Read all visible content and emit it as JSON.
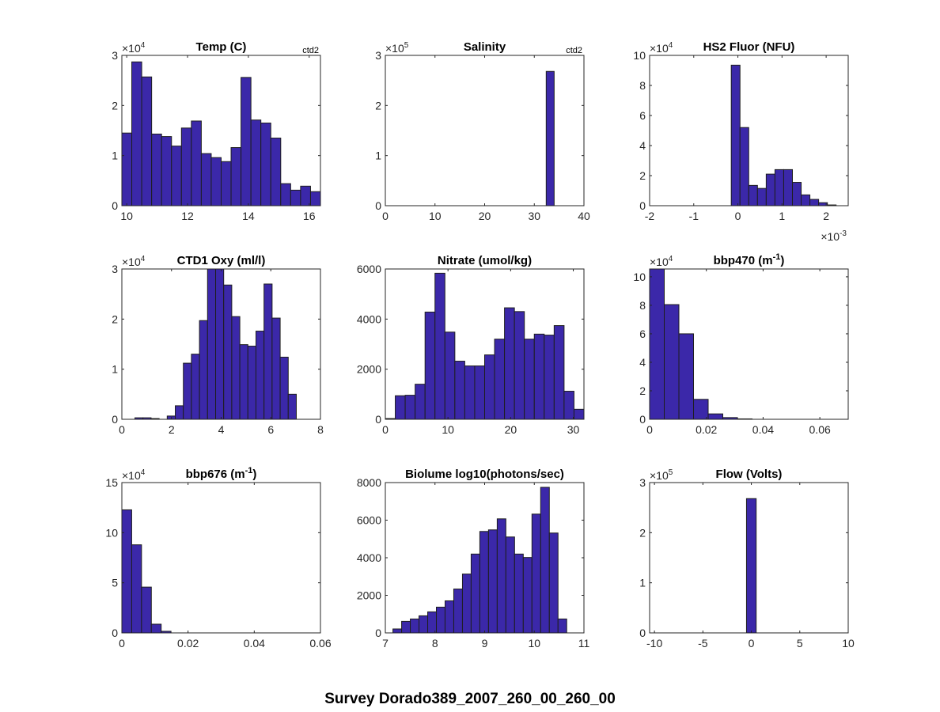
{
  "figure": {
    "suptitle": "Survey Dorado389_2007_260_00_260_00"
  },
  "colors": {
    "bar_fill": "#3b28a9",
    "bar_edge": "#1e1e1e",
    "axis": "#262626"
  },
  "chart_data": [
    {
      "type": "bar",
      "title": "Temp (C)",
      "title_sup": "",
      "title_end": "",
      "corner_label": "ctd2",
      "xlim": [
        9.84,
        16.37
      ],
      "xticks": [
        10,
        12,
        14,
        16
      ],
      "ylim": [
        0,
        3
      ],
      "yticks": [
        0,
        1,
        2,
        3
      ],
      "y_exponent": "4",
      "x_exponent": "",
      "bin_start": 9.84,
      "bin_width": 0.3265,
      "counts": [
        1.45,
        2.87,
        2.57,
        1.43,
        1.38,
        1.19,
        1.55,
        1.69,
        1.04,
        0.96,
        0.88,
        1.16,
        2.56,
        1.71,
        1.65,
        1.35,
        0.44,
        0.31,
        0.39,
        0.28
      ]
    },
    {
      "type": "bar",
      "title": "Salinity",
      "title_sup": "",
      "title_end": "",
      "corner_label": "ctd2",
      "xlim": [
        0,
        40
      ],
      "xticks": [
        0,
        10,
        20,
        30,
        40
      ],
      "ylim": [
        0,
        3
      ],
      "yticks": [
        0,
        1,
        2,
        3
      ],
      "y_exponent": "5",
      "x_exponent": "",
      "bin_start": 32.4,
      "bin_width": 1.6,
      "counts": [
        2.68
      ]
    },
    {
      "type": "bar",
      "title": "HS2 Fluor (NFU)",
      "title_sup": "",
      "title_end": "",
      "corner_label": "",
      "xlim": [
        -2,
        2.5
      ],
      "xticks": [
        -2,
        -1,
        0,
        1,
        2
      ],
      "ylim": [
        0,
        10
      ],
      "yticks": [
        0,
        2,
        4,
        6,
        8,
        10
      ],
      "y_exponent": "4",
      "x_exponent": "-3",
      "bin_start": -0.15,
      "bin_width": 0.198,
      "counts": [
        9.35,
        5.2,
        1.35,
        1.15,
        2.1,
        2.4,
        2.4,
        1.55,
        0.72,
        0.42,
        0.2,
        0.05
      ]
    },
    {
      "type": "bar",
      "title": "CTD1 Oxy (ml/l)",
      "title_sup": "",
      "title_end": "",
      "corner_label": "",
      "xlim": [
        0,
        8
      ],
      "xticks": [
        0,
        2,
        4,
        6,
        8
      ],
      "ylim": [
        0,
        3
      ],
      "yticks": [
        0,
        1,
        2,
        3
      ],
      "y_exponent": "4",
      "x_exponent": "",
      "bin_start": 0.527,
      "bin_width": 0.325,
      "counts": [
        0.03,
        0.03,
        0.015,
        0,
        0.065,
        0.27,
        1.12,
        1.3,
        1.97,
        3.05,
        3.02,
        2.68,
        2.05,
        1.49,
        1.46,
        1.76,
        2.7,
        2.02,
        1.24,
        0.5
      ]
    },
    {
      "type": "bar",
      "title": "Nitrate (umol/kg)",
      "title_sup": "",
      "title_end": "",
      "corner_label": "",
      "xlim": [
        0,
        31.7
      ],
      "xticks": [
        0,
        10,
        20,
        30
      ],
      "ylim": [
        0,
        6000
      ],
      "yticks": [
        0,
        2000,
        4000,
        6000
      ],
      "y_exponent": "",
      "x_exponent": "",
      "bin_start": 0,
      "bin_width": 1.585,
      "counts": [
        30,
        940,
        960,
        1400,
        4280,
        5830,
        3480,
        2320,
        2130,
        2130,
        2570,
        3200,
        4450,
        4300,
        3200,
        3400,
        3360,
        3740,
        1120,
        400
      ]
    },
    {
      "type": "bar",
      "title": "bbp470 (m",
      "title_sup": "-1",
      "title_end": ")",
      "corner_label": "",
      "xlim": [
        0,
        0.07
      ],
      "xticks": [
        0,
        0.02,
        0.04,
        0.06
      ],
      "ylim": [
        0,
        10.55
      ],
      "yticks": [
        0,
        2,
        4,
        6,
        8,
        10
      ],
      "y_exponent": "4",
      "x_exponent": "",
      "bin_start": 0,
      "bin_width": 0.00516,
      "counts": [
        10.6,
        8.05,
        6.0,
        1.4,
        0.38,
        0.12,
        0.03
      ]
    },
    {
      "type": "bar",
      "title": "bbp676 (m",
      "title_sup": "-1",
      "title_end": ")",
      "corner_label": "",
      "xlim": [
        0,
        0.06
      ],
      "xticks": [
        0,
        0.02,
        0.04,
        0.06
      ],
      "ylim": [
        0,
        15
      ],
      "yticks": [
        0,
        5,
        10,
        15
      ],
      "y_exponent": "4",
      "x_exponent": "",
      "bin_start": 0,
      "bin_width": 0.00297,
      "counts": [
        12.28,
        8.79,
        4.57,
        0.87,
        0.16
      ]
    },
    {
      "type": "bar",
      "title": "Biolume log10(photons/sec)",
      "title_sup": "",
      "title_end": "",
      "corner_label": "",
      "xlim": [
        7,
        11
      ],
      "xticks": [
        7,
        8,
        9,
        10,
        11
      ],
      "ylim": [
        0,
        8000
      ],
      "yticks": [
        0,
        2000,
        4000,
        6000,
        8000
      ],
      "y_exponent": "",
      "x_exponent": "",
      "bin_start": 7.153,
      "bin_width": 0.175,
      "counts": [
        210,
        615,
        741,
        909,
        1119,
        1370,
        1706,
        2336,
        3133,
        4196,
        5399,
        5483,
        6070,
        5105,
        4196,
        4014,
        6322,
        7748,
        5315,
        741
      ]
    },
    {
      "type": "bar",
      "title": "Flow (Volts)",
      "title_sup": "",
      "title_end": "",
      "corner_label": "",
      "xlim": [
        -10.5,
        10
      ],
      "xticks": [
        -10,
        -5,
        0,
        5,
        10
      ],
      "ylim": [
        0,
        3
      ],
      "yticks": [
        0,
        1,
        2,
        3
      ],
      "y_exponent": "5",
      "x_exponent": "",
      "bin_start": -0.5,
      "bin_width": 1.0,
      "counts": [
        2.68
      ]
    }
  ]
}
